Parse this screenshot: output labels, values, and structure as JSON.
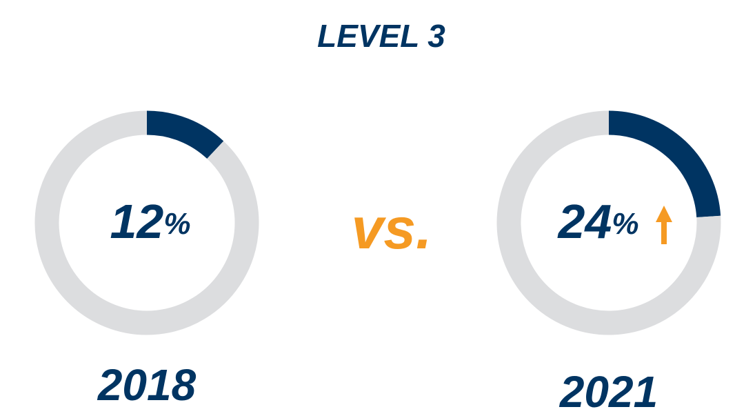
{
  "title": "LEVEL 3",
  "separator": "vs.",
  "chart_data": [
    {
      "type": "donut",
      "title": "2018",
      "values": [
        12,
        88
      ],
      "value_labels": [
        "12%",
        null
      ],
      "colors": [
        "#003462",
        "#dcdddf"
      ]
    },
    {
      "type": "donut",
      "title": "2021",
      "values": [
        24,
        76
      ],
      "value_labels": [
        "24%",
        null
      ],
      "colors": [
        "#003462",
        "#dcdddf"
      ]
    }
  ]
}
